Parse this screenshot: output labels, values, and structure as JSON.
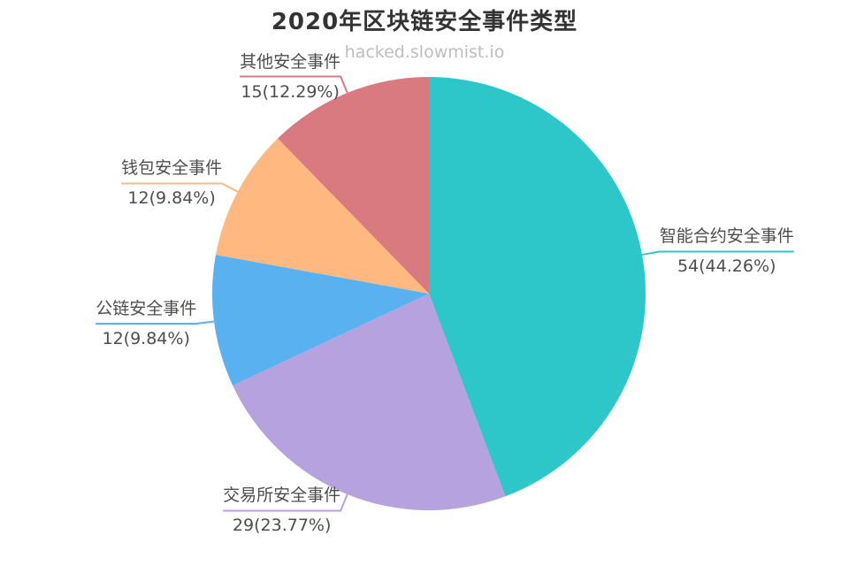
{
  "chart_data": {
    "type": "pie",
    "title": "2020年区块链安全事件类型",
    "watermark": "hacked.slowmist.io",
    "total": 122,
    "start_angle_deg": 0,
    "direction": "clockwise",
    "legend": "none",
    "background": "#ffffff",
    "label_text_color": "#4d4d4d",
    "slices": [
      {
        "name": "智能合约安全事件",
        "value": 54,
        "pct": 44.26,
        "value_label": "54(44.26%)",
        "color": "#2ec7c9"
      },
      {
        "name": "交易所安全事件",
        "value": 29,
        "pct": 23.77,
        "value_label": "29(23.77%)",
        "color": "#b6a2de"
      },
      {
        "name": "公链安全事件",
        "value": 12,
        "pct": 9.84,
        "value_label": "12(9.84%)",
        "color": "#5ab1ef"
      },
      {
        "name": "钱包安全事件",
        "value": 12,
        "pct": 9.84,
        "value_label": "12(9.84%)",
        "color": "#ffb980"
      },
      {
        "name": "其他安全事件",
        "value": 15,
        "pct": 12.29,
        "value_label": "15(12.29%)",
        "color": "#d87a80"
      }
    ]
  }
}
